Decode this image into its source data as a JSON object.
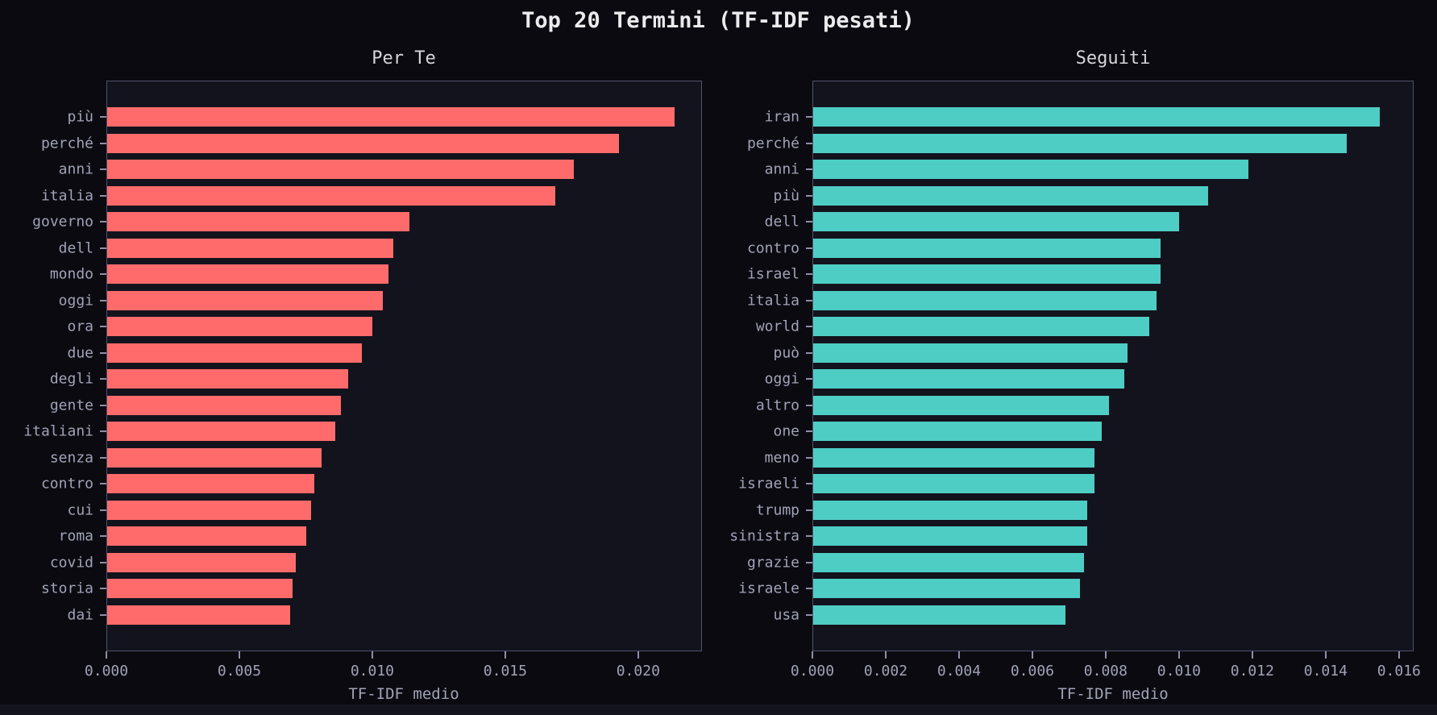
{
  "page": {
    "title": "Top 20 Termini (TF-IDF pesati)"
  },
  "colors": {
    "background": "#0a0a10",
    "plot_background": "#13131d",
    "plot_border": "#52526c",
    "text_muted": "#a2a2b8",
    "title_text": "#ebebee",
    "per_te_bar": "#ff6b6b",
    "seguiti_bar": "#4ecdc4"
  },
  "chart_data": [
    {
      "type": "bar",
      "orientation": "horizontal",
      "title": "Per Te",
      "xlabel": "TF-IDF medio",
      "bar_color": "#ff6b6b",
      "grid": false,
      "xlim": [
        0,
        0.0224
      ],
      "xticks": [
        0.0,
        0.005,
        0.01,
        0.015,
        0.02
      ],
      "categories": [
        "più",
        "perché",
        "anni",
        "italia",
        "governo",
        "dell",
        "mondo",
        "oggi",
        "ora",
        "due",
        "degli",
        "gente",
        "italiani",
        "senza",
        "contro",
        "cui",
        "roma",
        "covid",
        "storia",
        "dai"
      ],
      "values": [
        0.0214,
        0.0193,
        0.0176,
        0.0169,
        0.0114,
        0.0108,
        0.0106,
        0.0104,
        0.01,
        0.0096,
        0.0091,
        0.0088,
        0.0086,
        0.0081,
        0.0078,
        0.0077,
        0.0075,
        0.0071,
        0.007,
        0.0069
      ]
    },
    {
      "type": "bar",
      "orientation": "horizontal",
      "title": "Seguiti",
      "xlabel": "TF-IDF medio",
      "bar_color": "#4ecdc4",
      "grid": false,
      "xlim": [
        0,
        0.0164
      ],
      "xticks": [
        0.0,
        0.002,
        0.004,
        0.006,
        0.008,
        0.01,
        0.012,
        0.014,
        0.016
      ],
      "categories": [
        "iran",
        "perché",
        "anni",
        "più",
        "dell",
        "contro",
        "israel",
        "italia",
        "world",
        "può",
        "oggi",
        "altro",
        "one",
        "meno",
        "israeli",
        "trump",
        "sinistra",
        "grazie",
        "israele",
        "usa"
      ],
      "values": [
        0.0155,
        0.0146,
        0.0119,
        0.0108,
        0.01,
        0.0095,
        0.0095,
        0.0094,
        0.0092,
        0.0086,
        0.0085,
        0.0081,
        0.0079,
        0.0077,
        0.0077,
        0.0075,
        0.0075,
        0.0074,
        0.0073,
        0.0069
      ]
    }
  ]
}
